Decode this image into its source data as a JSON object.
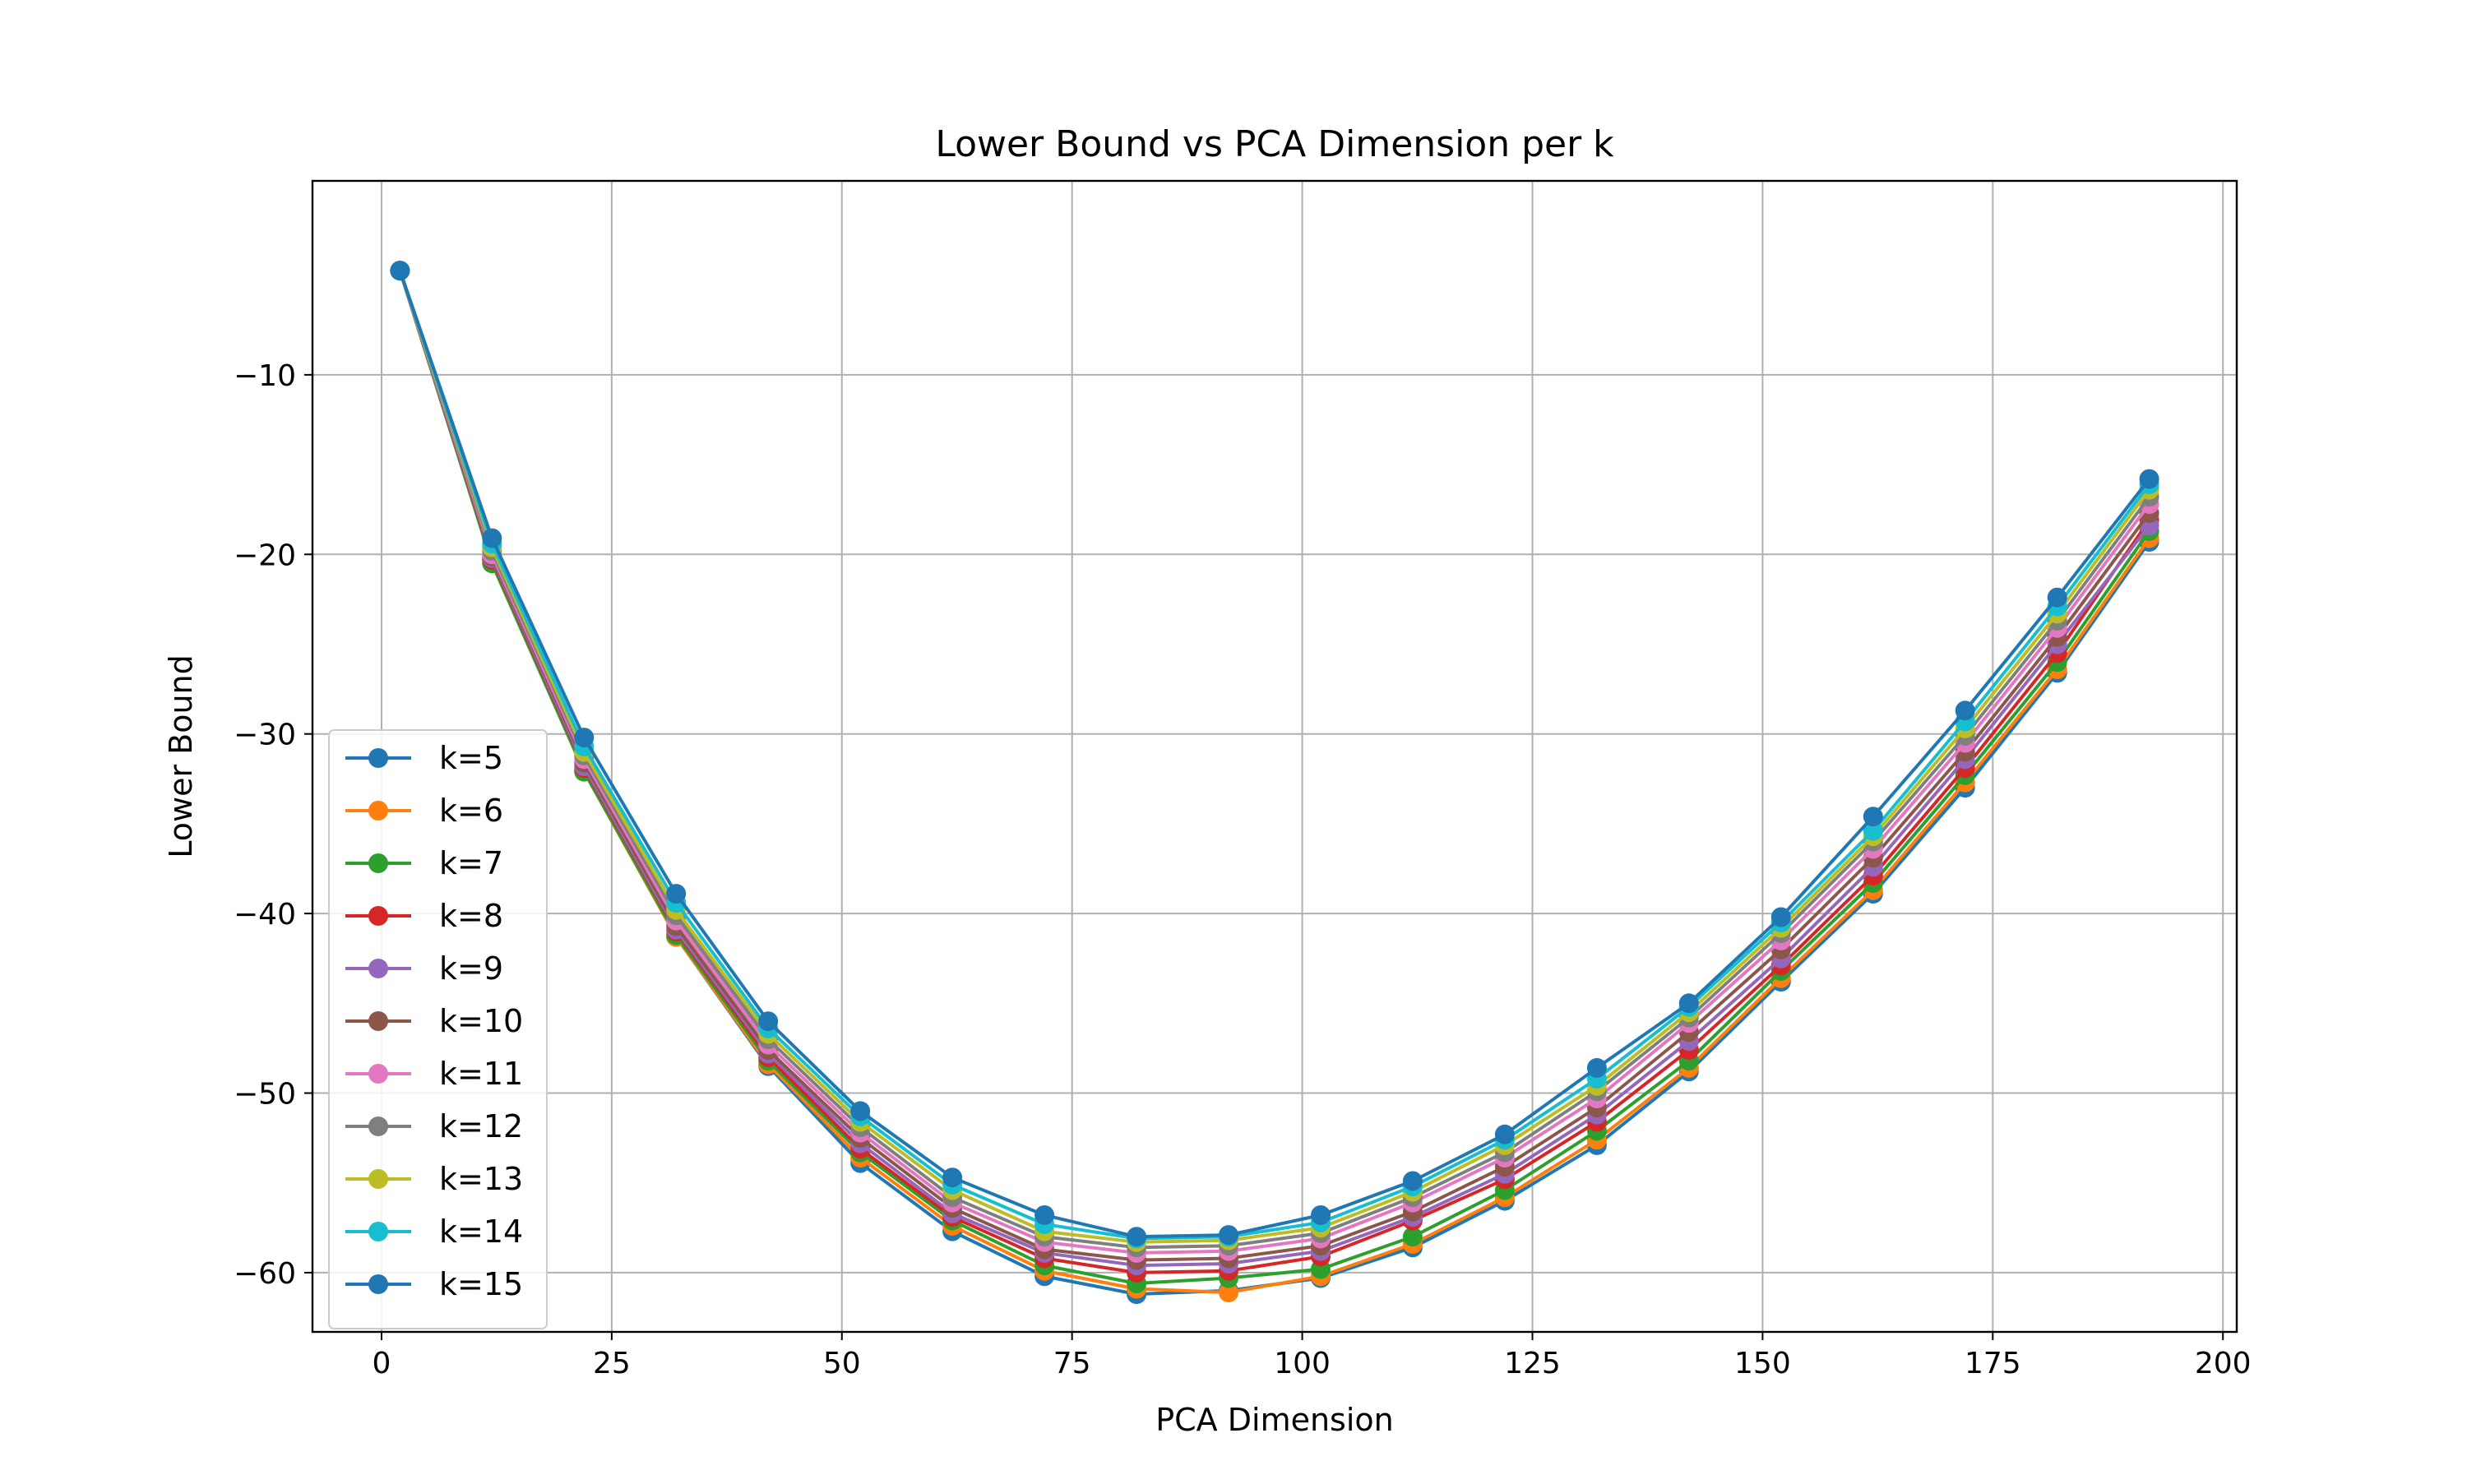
{
  "chart_data": {
    "type": "line",
    "title": "Lower Bound vs PCA Dimension per k",
    "xlabel": "PCA Dimension",
    "ylabel": "Lower Bound",
    "xlim": [
      -7.5,
      201.5
    ],
    "ylim": [
      -63.3,
      0.8
    ],
    "xticks": [
      0,
      25,
      50,
      75,
      100,
      125,
      150,
      175,
      200
    ],
    "xtick_labels": [
      "0",
      "25",
      "50",
      "75",
      "100",
      "125",
      "150",
      "175",
      "200"
    ],
    "yticks": [
      -10,
      -20,
      -30,
      -40,
      -50,
      -60
    ],
    "ytick_labels": [
      "−10",
      "−20",
      "−30",
      "−40",
      "−50",
      "−60"
    ],
    "grid": true,
    "legend_position": "lower left",
    "x": [
      2,
      12,
      22,
      32,
      42,
      52,
      62,
      72,
      82,
      92,
      102,
      112,
      122,
      132,
      142,
      152,
      162,
      172,
      182,
      192
    ],
    "series": [
      {
        "name": "k=5",
        "color": "#1f77b4",
        "values": [
          -4.2,
          -20.3,
          -32.0,
          -41.3,
          -48.5,
          -53.9,
          -57.7,
          -60.2,
          -61.2,
          -61.0,
          -60.3,
          -58.6,
          -56.0,
          -52.9,
          -48.8,
          -43.8,
          -38.9,
          -33.0,
          -26.6,
          -19.3
        ]
      },
      {
        "name": "k=6",
        "color": "#ff7f0e",
        "values": [
          -4.2,
          -20.4,
          -32.1,
          -41.3,
          -48.4,
          -53.6,
          -57.4,
          -59.9,
          -60.9,
          -61.1,
          -60.2,
          -58.4,
          -55.8,
          -52.6,
          -48.6,
          -43.6,
          -38.7,
          -32.7,
          -26.4,
          -19.1
        ]
      },
      {
        "name": "k=7",
        "color": "#2ca02c",
        "values": [
          -4.2,
          -20.5,
          -32.1,
          -41.2,
          -48.2,
          -53.3,
          -57.1,
          -59.6,
          -60.6,
          -60.3,
          -59.8,
          -58.0,
          -55.4,
          -52.1,
          -48.2,
          -43.2,
          -38.3,
          -32.3,
          -26.0,
          -18.7
        ]
      },
      {
        "name": "k=8",
        "color": "#d62728",
        "values": [
          -4.2,
          -20.3,
          -31.9,
          -41.0,
          -48.0,
          -53.1,
          -56.9,
          -59.2,
          -60.0,
          -59.9,
          -59.1,
          -57.1,
          -54.8,
          -51.6,
          -47.6,
          -42.9,
          -37.9,
          -31.9,
          -25.5,
          -18.1
        ]
      },
      {
        "name": "k=9",
        "color": "#9467bd",
        "values": [
          -4.2,
          -20.2,
          -31.8,
          -40.9,
          -47.8,
          -52.8,
          -56.7,
          -58.9,
          -59.6,
          -59.5,
          -58.8,
          -56.9,
          -54.5,
          -51.2,
          -47.1,
          -42.5,
          -37.4,
          -31.4,
          -25.0,
          -18.4
        ]
      },
      {
        "name": "k=10",
        "color": "#8c564b",
        "values": [
          -4.2,
          -20.1,
          -31.6,
          -40.7,
          -47.6,
          -52.5,
          -56.4,
          -58.7,
          -59.3,
          -59.2,
          -58.5,
          -56.6,
          -54.1,
          -50.8,
          -46.6,
          -42.0,
          -36.9,
          -31.0,
          -24.6,
          -17.7
        ]
      },
      {
        "name": "k=11",
        "color": "#e377c2",
        "values": [
          -4.2,
          -20.0,
          -31.4,
          -40.4,
          -47.3,
          -52.2,
          -56.1,
          -58.3,
          -58.9,
          -58.8,
          -58.1,
          -56.1,
          -53.6,
          -50.3,
          -46.1,
          -41.5,
          -36.4,
          -30.5,
          -24.1,
          -17.2
        ]
      },
      {
        "name": "k=12",
        "color": "#7f7f7f",
        "values": [
          -4.2,
          -19.8,
          -31.2,
          -40.1,
          -47.0,
          -51.9,
          -55.8,
          -58.0,
          -58.6,
          -58.5,
          -57.8,
          -55.8,
          -53.3,
          -49.9,
          -45.8,
          -41.1,
          -36.0,
          -30.1,
          -23.7,
          -16.8
        ]
      },
      {
        "name": "k=13",
        "color": "#bcbd22",
        "values": [
          -4.2,
          -19.6,
          -31.0,
          -39.8,
          -46.7,
          -51.6,
          -55.4,
          -57.7,
          -58.3,
          -58.2,
          -57.5,
          -55.5,
          -52.9,
          -49.6,
          -45.5,
          -40.8,
          -35.7,
          -29.7,
          -23.3,
          -16.4
        ]
      },
      {
        "name": "k=14",
        "color": "#17becf",
        "values": [
          -4.2,
          -19.4,
          -30.7,
          -39.4,
          -46.4,
          -51.3,
          -55.1,
          -57.3,
          -58.1,
          -58.0,
          -57.2,
          -55.2,
          -52.6,
          -49.2,
          -45.2,
          -40.5,
          -35.4,
          -29.3,
          -22.9,
          -16.1
        ]
      },
      {
        "name": "k=15",
        "color": "#1f77b4",
        "values": [
          -4.2,
          -19.1,
          -30.2,
          -38.9,
          -46.0,
          -51.0,
          -54.7,
          -56.8,
          -58.0,
          -57.9,
          -56.8,
          -54.9,
          -52.3,
          -48.6,
          -45.0,
          -40.2,
          -34.6,
          -28.7,
          -22.4,
          -15.8
        ]
      }
    ]
  }
}
